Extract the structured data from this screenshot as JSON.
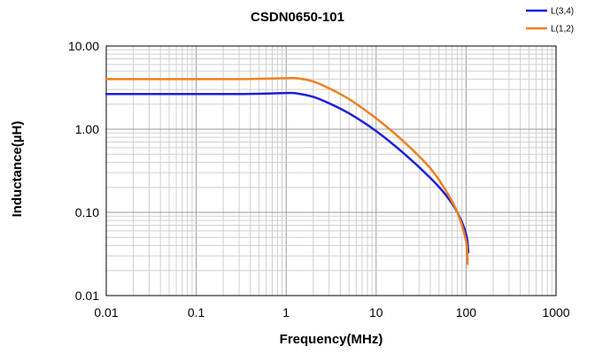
{
  "chart_data": {
    "type": "line",
    "title": "CSDN0650-101",
    "xlabel": "Frequency(MHz)",
    "ylabel": "Inductance(µH)",
    "x_scale": "log",
    "y_scale": "log",
    "xlim": [
      0.01,
      1000
    ],
    "ylim": [
      0.01,
      10
    ],
    "x_ticks": [
      0.01,
      0.1,
      1,
      10,
      100,
      1000
    ],
    "x_tick_labels": [
      "0.01",
      "0.1",
      "1",
      "10",
      "100",
      "1000"
    ],
    "y_ticks": [
      0.01,
      0.1,
      1,
      10
    ],
    "y_tick_labels": [
      "0.01",
      "0.10",
      "1.00",
      "10.00"
    ],
    "grid": true,
    "legend_position": "top-right",
    "series": [
      {
        "name": "L(3,4)",
        "color": "#1f1fd6",
        "x": [
          0.01,
          0.03,
          0.1,
          0.3,
          0.6,
          1,
          1.3,
          2,
          3,
          5,
          10,
          20,
          40,
          60,
          80,
          100,
          106
        ],
        "y": [
          2.65,
          2.65,
          2.65,
          2.65,
          2.68,
          2.72,
          2.7,
          2.45,
          2.05,
          1.55,
          0.95,
          0.52,
          0.26,
          0.16,
          0.1,
          0.055,
          0.033
        ]
      },
      {
        "name": "L(1,2)",
        "color": "#f07f1f",
        "x": [
          0.01,
          0.03,
          0.1,
          0.3,
          0.6,
          1,
          1.3,
          2,
          3,
          5,
          10,
          20,
          40,
          60,
          80,
          100,
          104
        ],
        "y": [
          4.0,
          4.0,
          4.0,
          4.0,
          4.05,
          4.1,
          4.1,
          3.75,
          3.1,
          2.3,
          1.35,
          0.72,
          0.34,
          0.18,
          0.1,
          0.045,
          0.024
        ]
      }
    ]
  }
}
